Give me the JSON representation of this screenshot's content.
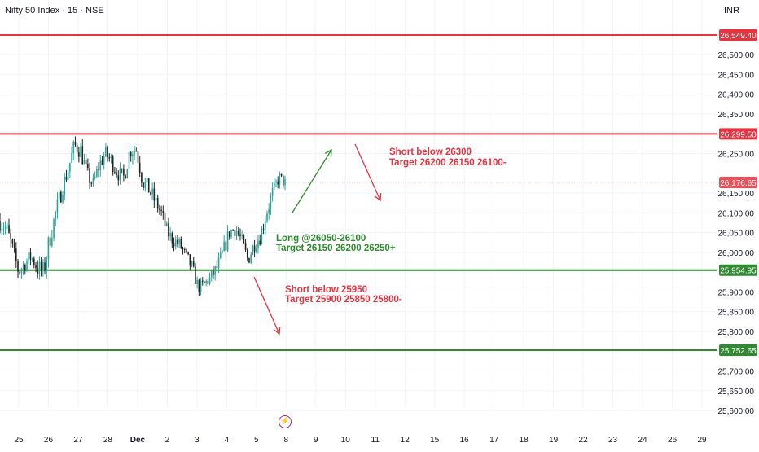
{
  "header": {
    "symbol_title": "Nifty 50 Index · 15 · NSE",
    "currency": "INR"
  },
  "colors": {
    "resistance": "#e53340",
    "support": "#2e8b2e",
    "candle_up": "#26a69a",
    "candle_down": "#222222",
    "current_price": "#f04e57",
    "grid": "#f0f3fa"
  },
  "chart_data": {
    "type": "candlestick",
    "symbol": "Nifty 50 Index",
    "interval": "15",
    "exchange": "NSE",
    "currency": "INR",
    "ylim": [
      25570,
      26590
    ],
    "y_ticks": [
      "26,500.00",
      "26,450.00",
      "26,400.00",
      "26,350.00",
      "26,250.00",
      "26,150.00",
      "26,100.00",
      "26,050.00",
      "26,000.00",
      "25,900.00",
      "25,850.00",
      "25,800.00",
      "25,700.00",
      "25,650.00",
      "25,600.00"
    ],
    "y_tick_values": [
      26500,
      26450,
      26400,
      26350,
      26250,
      26150,
      26100,
      26050,
      26000,
      25900,
      25850,
      25800,
      25700,
      25650,
      25600
    ],
    "x_ticks": [
      "25",
      "26",
      "27",
      "28",
      "Dec",
      "2",
      "3",
      "4",
      "5",
      "8",
      "9",
      "10",
      "11",
      "12",
      "15",
      "16",
      "17",
      "18",
      "19",
      "22",
      "23",
      "24",
      "26",
      "29"
    ],
    "current_price": {
      "label": "26,176.65",
      "value": 26176.65
    },
    "levels": [
      {
        "label": "26,549.40",
        "value": 26549.4,
        "kind": "resistance"
      },
      {
        "label": "26,299.50",
        "value": 26299.5,
        "kind": "resistance"
      },
      {
        "label": "25,954.95",
        "value": 25954.95,
        "kind": "support"
      },
      {
        "label": "25,752.65",
        "value": 25752.65,
        "kind": "support"
      }
    ],
    "price_path": [
      [
        26080,
        26110,
        26040
      ],
      [
        26060,
        26090,
        25990
      ],
      [
        26010,
        26040,
        25960
      ],
      [
        25950,
        25990,
        25925
      ],
      [
        25970,
        26010,
        25945
      ],
      [
        25990,
        26030,
        25960
      ],
      [
        25960,
        25990,
        25930
      ],
      [
        25950,
        25980,
        25860
      ],
      [
        26030,
        26070,
        25990
      ],
      [
        26100,
        26140,
        26060
      ],
      [
        26160,
        26200,
        26120
      ],
      [
        26210,
        26250,
        26180
      ],
      [
        26270,
        26310,
        26230
      ],
      [
        26260,
        26300,
        26220
      ],
      [
        26200,
        26240,
        26170
      ],
      [
        26170,
        26210,
        26140
      ],
      [
        26220,
        26260,
        26190
      ],
      [
        26250,
        26290,
        26220
      ],
      [
        26230,
        26270,
        26200
      ],
      [
        26200,
        26240,
        26170
      ],
      [
        26190,
        26220,
        26160
      ],
      [
        26260,
        26320,
        26230
      ],
      [
        26260,
        26290,
        26220
      ],
      [
        26180,
        26220,
        26150
      ],
      [
        26160,
        26200,
        26120
      ],
      [
        26130,
        26160,
        26090
      ],
      [
        26100,
        26130,
        26060
      ],
      [
        26050,
        26080,
        26020
      ],
      [
        26030,
        26060,
        26000
      ],
      [
        26020,
        26050,
        25990
      ],
      [
        25990,
        26020,
        25960
      ],
      [
        25960,
        25990,
        25920
      ],
      [
        25910,
        25940,
        25890
      ],
      [
        25920,
        25950,
        25895
      ],
      [
        25935,
        25965,
        25905
      ],
      [
        25960,
        25990,
        25930
      ],
      [
        26000,
        26040,
        25970
      ],
      [
        26050,
        26090,
        26020
      ],
      [
        26060,
        26090,
        26030
      ],
      [
        26030,
        26060,
        26000
      ],
      [
        25980,
        26020,
        25960
      ],
      [
        26020,
        26060,
        25990
      ],
      [
        26040,
        26070,
        26010
      ],
      [
        26100,
        26130,
        26060
      ],
      [
        26150,
        26180,
        26110
      ],
      [
        26190,
        26210,
        26160
      ],
      [
        26175,
        26205,
        26150
      ]
    ],
    "annotations": [
      {
        "line1": "Short below 26300",
        "line2": "Target 26200 26150 26100-",
        "color": "#e53340"
      },
      {
        "line1": "Long @26050-26100",
        "line2": "Target 26150 26200 26250+",
        "color": "#2e8b2e"
      },
      {
        "line1": "Short below 25950",
        "line2": "Target 25900 25850 25800-",
        "color": "#e53340"
      }
    ],
    "arrows": [
      {
        "direction": "up",
        "color": "#2e8b2e"
      },
      {
        "direction": "down",
        "color": "#e53340"
      },
      {
        "direction": "down",
        "color": "#e53340"
      }
    ]
  }
}
